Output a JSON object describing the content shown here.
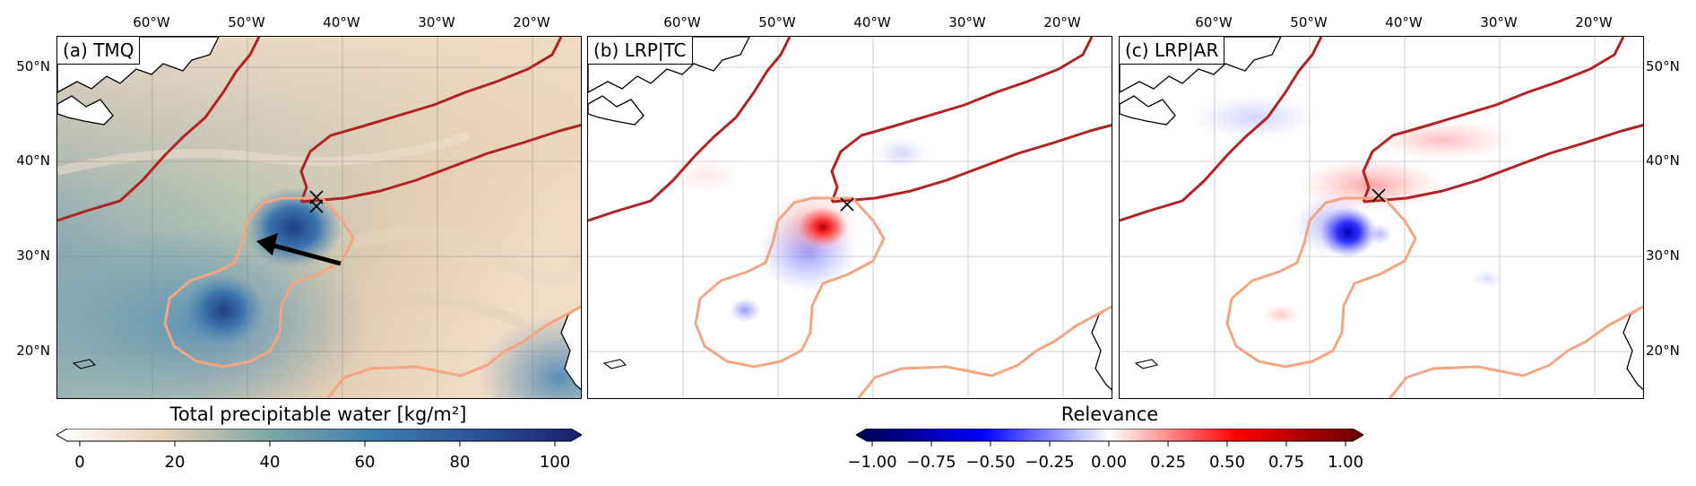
{
  "panels": [
    {
      "title": "(a) TMQ"
    },
    {
      "title": "(b) LRP|TC"
    },
    {
      "title": "(c) LRP|AR"
    }
  ],
  "lon_ticks": [
    "60°W",
    "50°W",
    "40°W",
    "30°W",
    "20°W"
  ],
  "lat_ticks": [
    "50°N",
    "40°N",
    "30°N",
    "20°N"
  ],
  "colorbar_tmq": {
    "label": "Total precipitable water [kg/m²]",
    "ticks": [
      "0",
      "20",
      "40",
      "60",
      "80",
      "100"
    ],
    "range": [
      0,
      100
    ],
    "colors": [
      "#ffffff",
      "#ead2b8",
      "#7ea8a6",
      "#3e7fb1",
      "#1a1f6b"
    ]
  },
  "colorbar_rel": {
    "label": "Relevance",
    "ticks": [
      "−1.00",
      "−0.75",
      "−0.50",
      "−0.25",
      "0.00",
      "0.25",
      "0.50",
      "0.75",
      "1.00"
    ],
    "range": [
      -1,
      1
    ],
    "colors": [
      "#00004d",
      "#0000ff",
      "#ffffff",
      "#ff0000",
      "#660000"
    ]
  },
  "overlay_colors": {
    "ar_contour": "#b22222",
    "tc_contour": "#f4a582",
    "coastline": "#000000"
  },
  "tc_motion_arrow": "black-arrow-pointing-west-northwest"
}
